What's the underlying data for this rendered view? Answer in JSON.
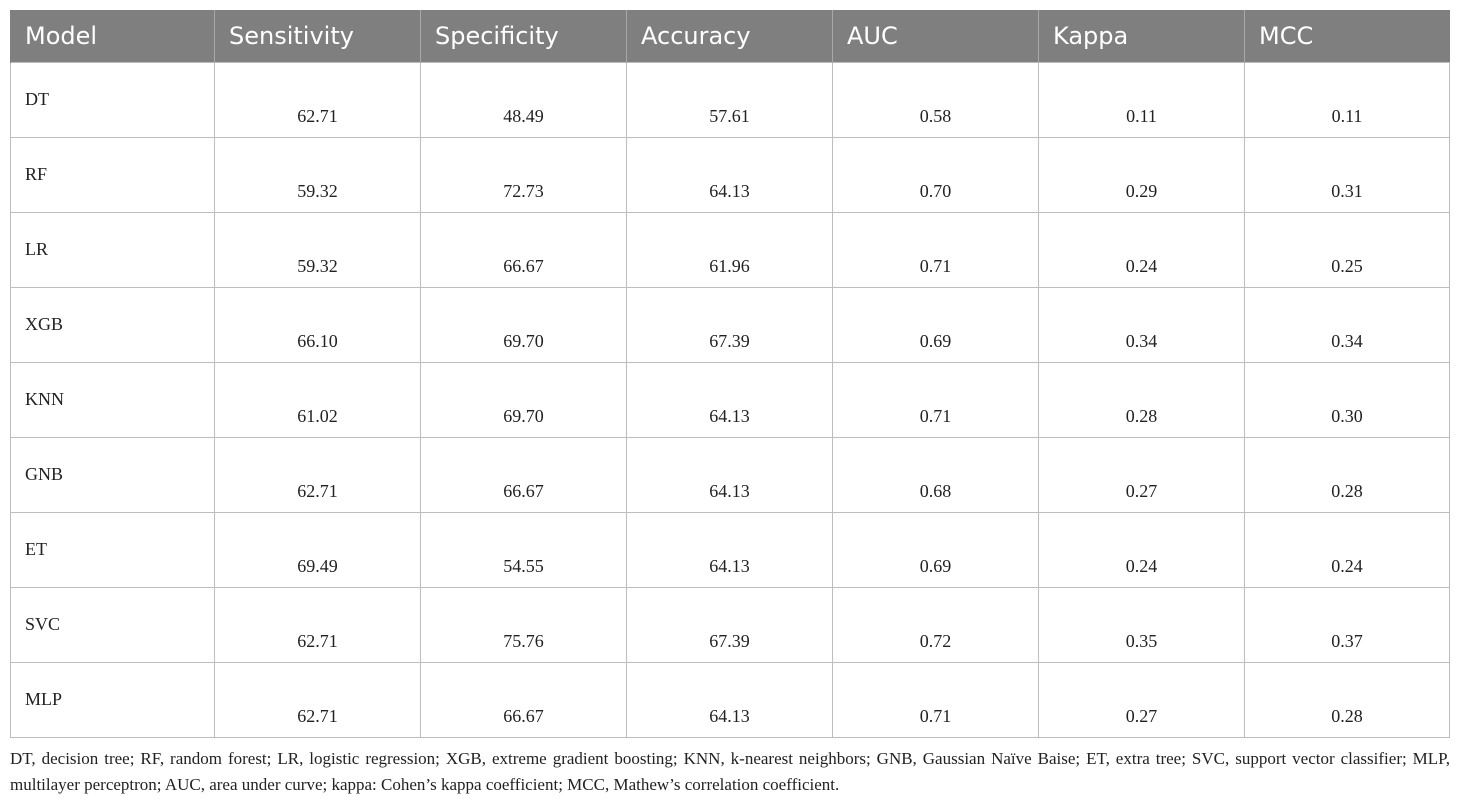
{
  "table": {
    "headers": [
      "Model",
      "Sensitivity",
      "Specificity",
      "Accuracy",
      "AUC",
      "Kappa",
      "MCC"
    ],
    "rows": [
      [
        "DT",
        "62.71",
        "48.49",
        "57.61",
        "0.58",
        "0.11",
        "0.11"
      ],
      [
        "RF",
        "59.32",
        "72.73",
        "64.13",
        "0.70",
        "0.29",
        "0.31"
      ],
      [
        "LR",
        "59.32",
        "66.67",
        "61.96",
        "0.71",
        "0.24",
        "0.25"
      ],
      [
        "XGB",
        "66.10",
        "69.70",
        "67.39",
        "0.69",
        "0.34",
        "0.34"
      ],
      [
        "KNN",
        "61.02",
        "69.70",
        "64.13",
        "0.71",
        "0.28",
        "0.30"
      ],
      [
        "GNB",
        "62.71",
        "66.67",
        "64.13",
        "0.68",
        "0.27",
        "0.28"
      ],
      [
        "ET",
        "69.49",
        "54.55",
        "64.13",
        "0.69",
        "0.24",
        "0.24"
      ],
      [
        "SVC",
        "62.71",
        "75.76",
        "67.39",
        "0.72",
        "0.35",
        "0.37"
      ],
      [
        "MLP",
        "62.71",
        "66.67",
        "64.13",
        "0.71",
        "0.27",
        "0.28"
      ]
    ]
  },
  "footnote": "DT, decision tree; RF, random forest; LR, logistic regression; XGB, extreme gradient boosting; KNN, k-nearest neighbors; GNB, Gaussian Naïve Baise; ET, extra tree; SVC, support vector classifier; MLP, multilayer perceptron; AUC, area under curve; kappa: Cohen’s kappa coefficient; MCC, Mathew’s correlation coefficient.",
  "colors": {
    "header_bg": "#7f7f7f",
    "header_text": "#ffffff",
    "grid": "#bdbdbd"
  }
}
